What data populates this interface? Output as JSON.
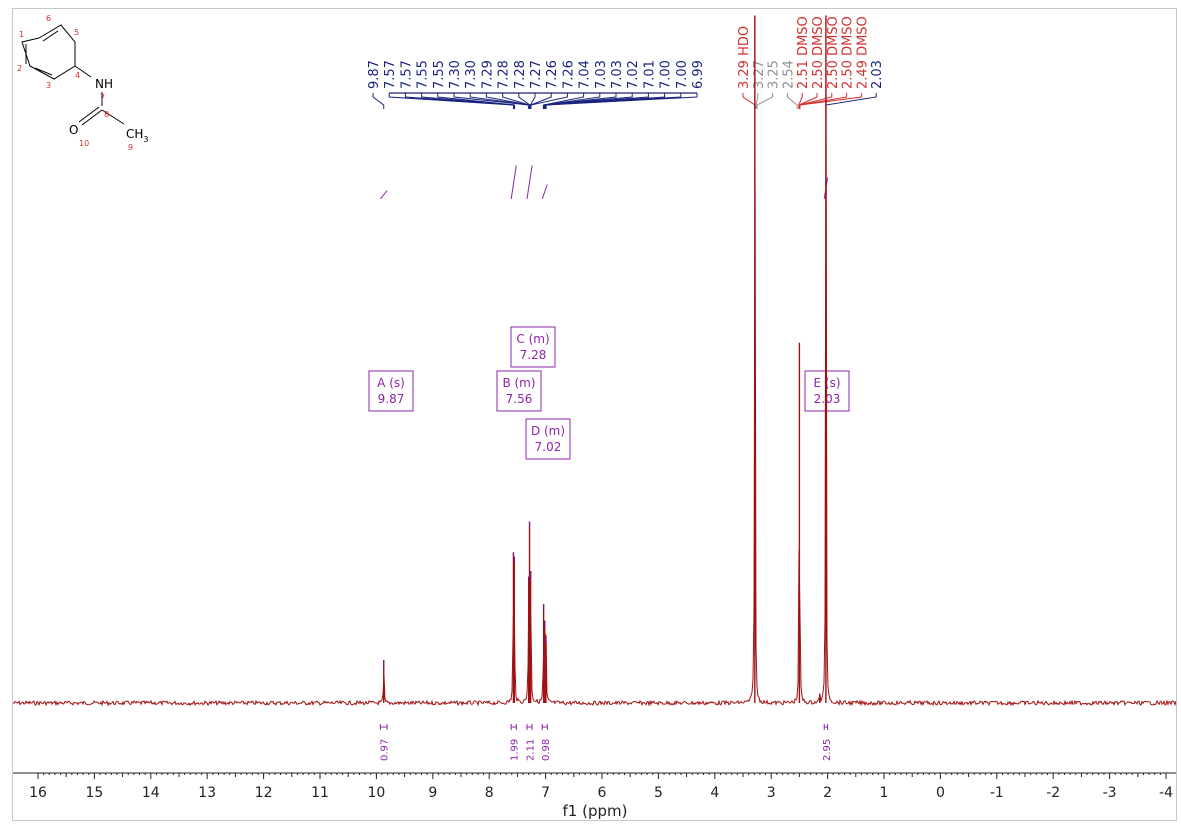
{
  "molecule": {
    "atoms": [
      {
        "id": "mol-atom-nh",
        "label": "NH"
      },
      {
        "id": "mol-atom-o",
        "label": "O"
      },
      {
        "id": "mol-atom-ch3",
        "label": "CH",
        "sub": "3"
      }
    ],
    "numbers": [
      {
        "id": "mol-num-1",
        "label": "1"
      },
      {
        "id": "mol-num-2",
        "label": "2"
      },
      {
        "id": "mol-num-3",
        "label": "3"
      },
      {
        "id": "mol-num-4",
        "label": "4"
      },
      {
        "id": "mol-num-5",
        "label": "5"
      },
      {
        "id": "mol-num-6",
        "label": "6"
      },
      {
        "id": "mol-num-7",
        "label": "7"
      },
      {
        "id": "mol-num-8",
        "label": "8"
      },
      {
        "id": "mol-num-9",
        "label": "9"
      },
      {
        "id": "mol-num-10",
        "label": "10"
      }
    ]
  },
  "colors": {
    "spectrum": "#a01010",
    "peak_labels": "#1a237e",
    "solvent_labels": "#d32f2f",
    "grey_labels": "#909090",
    "multiplets": "#8e24aa",
    "axis": "#222222"
  },
  "chart_data": {
    "type": "line",
    "title": "",
    "xlabel": "f1 (ppm)",
    "ylabel": "",
    "xlim": [
      16.3,
      -4.1
    ],
    "x_reversed": true,
    "x_ticks": [
      "16",
      "15",
      "14",
      "13",
      "12",
      "11",
      "10",
      "9",
      "8",
      "7",
      "6",
      "5",
      "4",
      "3",
      "2",
      "1",
      "0",
      "-1",
      "-2",
      "-3",
      "-4"
    ],
    "series": [
      {
        "peaks": [
          {
            "ppm": 9.87,
            "height": 0.078
          },
          {
            "ppm": 7.57,
            "height": 0.274
          },
          {
            "ppm": 7.555,
            "height": 0.266
          },
          {
            "ppm": 7.3,
            "height": 0.23
          },
          {
            "ppm": 7.285,
            "height": 0.33
          },
          {
            "ppm": 7.265,
            "height": 0.24
          },
          {
            "ppm": 7.035,
            "height": 0.18
          },
          {
            "ppm": 7.015,
            "height": 0.15
          },
          {
            "ppm": 6.995,
            "height": 0.12
          },
          {
            "ppm": 3.29,
            "height": 1.25
          },
          {
            "ppm": 2.5,
            "height": 0.655
          },
          {
            "ppm": 2.03,
            "height": 1.25
          },
          {
            "ppm": 2.14,
            "height": 0.017
          }
        ]
      }
    ],
    "peak_labels": [
      {
        "text": "9.87",
        "ppm": 9.87,
        "kind": "peak"
      },
      {
        "text": "7.57",
        "ppm": 7.57,
        "kind": "peak"
      },
      {
        "text": "7.57",
        "ppm": 7.565,
        "kind": "peak"
      },
      {
        "text": "7.55",
        "ppm": 7.555,
        "kind": "peak"
      },
      {
        "text": "7.55",
        "ppm": 7.55,
        "kind": "peak"
      },
      {
        "text": "7.30",
        "ppm": 7.3,
        "kind": "peak"
      },
      {
        "text": "7.30",
        "ppm": 7.298,
        "kind": "peak"
      },
      {
        "text": "7.29",
        "ppm": 7.29,
        "kind": "peak"
      },
      {
        "text": "7.28",
        "ppm": 7.283,
        "kind": "peak"
      },
      {
        "text": "7.28",
        "ppm": 7.28,
        "kind": "peak"
      },
      {
        "text": "7.27",
        "ppm": 7.27,
        "kind": "peak"
      },
      {
        "text": "7.26",
        "ppm": 7.263,
        "kind": "peak"
      },
      {
        "text": "7.26",
        "ppm": 7.26,
        "kind": "peak"
      },
      {
        "text": "7.04",
        "ppm": 7.04,
        "kind": "peak"
      },
      {
        "text": "7.03",
        "ppm": 7.033,
        "kind": "peak"
      },
      {
        "text": "7.03",
        "ppm": 7.03,
        "kind": "peak"
      },
      {
        "text": "7.02",
        "ppm": 7.02,
        "kind": "peak"
      },
      {
        "text": "7.01",
        "ppm": 7.01,
        "kind": "peak"
      },
      {
        "text": "7.00",
        "ppm": 7.0,
        "kind": "peak"
      },
      {
        "text": "7.00",
        "ppm": 6.997,
        "kind": "peak"
      },
      {
        "text": "6.99",
        "ppm": 6.99,
        "kind": "peak"
      },
      {
        "text": "3.29 HDO",
        "ppm": 3.29,
        "kind": "solvent"
      },
      {
        "text": "3.27",
        "ppm": 3.27,
        "kind": "grey"
      },
      {
        "text": "3.25",
        "ppm": 3.25,
        "kind": "grey"
      },
      {
        "text": "2.54",
        "ppm": 2.54,
        "kind": "grey"
      },
      {
        "text": "2.51 DMSO",
        "ppm": 2.51,
        "kind": "solvent"
      },
      {
        "text": "2.50 DMSO",
        "ppm": 2.505,
        "kind": "solvent"
      },
      {
        "text": "2.50 DMSO",
        "ppm": 2.5,
        "kind": "solvent"
      },
      {
        "text": "2.50 DMSO",
        "ppm": 2.497,
        "kind": "solvent"
      },
      {
        "text": "2.49 DMSO",
        "ppm": 2.49,
        "kind": "solvent"
      },
      {
        "text": "2.03",
        "ppm": 2.03,
        "kind": "peak"
      }
    ],
    "multiplets": [
      {
        "letter": "A",
        "mult": "s",
        "shift": "9.87",
        "ppm": 9.87
      },
      {
        "letter": "B",
        "mult": "m",
        "shift": "7.56",
        "ppm": 7.56
      },
      {
        "letter": "C",
        "mult": "m",
        "shift": "7.28",
        "ppm": 7.28
      },
      {
        "letter": "D",
        "mult": "m",
        "shift": "7.02",
        "ppm": 7.02
      },
      {
        "letter": "E",
        "mult": "s",
        "shift": "2.03",
        "ppm": 2.03
      }
    ],
    "integrals": [
      {
        "value": "0.97",
        "from": 9.93,
        "to": 9.81,
        "rise": 0.17
      },
      {
        "value": "1.99",
        "from": 7.61,
        "to": 7.52,
        "rise": 0.67
      },
      {
        "value": "2.11",
        "from": 7.33,
        "to": 7.24,
        "rise": 0.67
      },
      {
        "value": "0.98",
        "from": 7.06,
        "to": 6.97,
        "rise": 0.29
      },
      {
        "value": "2.95",
        "from": 2.06,
        "to": 2.0,
        "rise": 0.43
      }
    ]
  }
}
